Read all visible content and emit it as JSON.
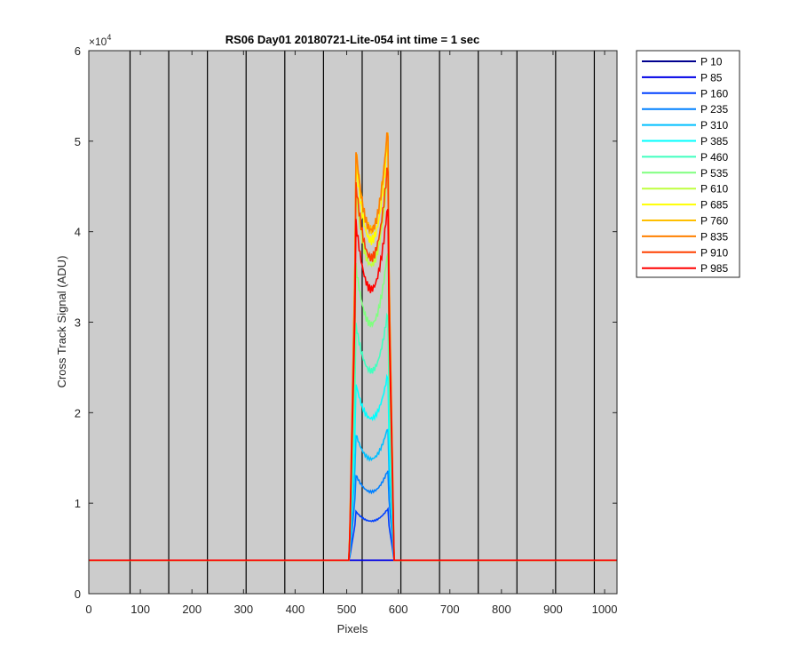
{
  "chart_data": {
    "type": "line",
    "title": "RS06 Day01 20180721-Lite-054 int time = 1 sec",
    "xlabel": "Pixels",
    "ylabel": "Cross Track Signal (ADU)",
    "y_exponent_label": "×10",
    "y_exponent_power": "4",
    "xlim": [
      0,
      1024
    ],
    "ylim": [
      0,
      60000
    ],
    "x_ticks": [
      0,
      100,
      200,
      300,
      400,
      500,
      600,
      700,
      800,
      900,
      1000
    ],
    "x_tick_labels": [
      "0",
      "100",
      "200",
      "300",
      "400",
      "500",
      "600",
      "700",
      "800",
      "900",
      "1000"
    ],
    "y_ticks": [
      0,
      10000,
      20000,
      30000,
      40000,
      50000,
      60000
    ],
    "y_tick_labels": [
      "0",
      "1",
      "2",
      "3",
      "4",
      "5",
      "6"
    ],
    "vertical_lines_x": [
      80,
      155,
      230,
      305,
      380,
      455,
      530,
      605,
      680,
      755,
      830,
      905,
      980
    ],
    "background": "#cccccc",
    "grid": false,
    "legend_position": "outside-top-right",
    "baseline": 3700,
    "x_range_rise": [
      515,
      580
    ],
    "series": [
      {
        "name": "P 10",
        "color": "#00008f",
        "peak": 3700
      },
      {
        "name": "P 85",
        "color": "#0000e6",
        "peak": 3700
      },
      {
        "name": "P 160",
        "color": "#0040ff",
        "peak": 9300
      },
      {
        "name": "P 235",
        "color": "#0080ff",
        "peak": 13500
      },
      {
        "name": "P 310",
        "color": "#00bfff",
        "peak": 18200
      },
      {
        "name": "P 385",
        "color": "#00ffff",
        "peak": 24000
      },
      {
        "name": "P 460",
        "color": "#40ffbf",
        "peak": 30800
      },
      {
        "name": "P 535",
        "color": "#80ff80",
        "peak": 37500
      },
      {
        "name": "P 610",
        "color": "#bfff40",
        "peak": 46000
      },
      {
        "name": "P 685",
        "color": "#ffff00",
        "peak": 49500
      },
      {
        "name": "P 760",
        "color": "#ffbf00",
        "peak": 51000
      },
      {
        "name": "P 835",
        "color": "#ff8000",
        "peak": 51000
      },
      {
        "name": "P 910",
        "color": "#ff4000",
        "peak": 47000
      },
      {
        "name": "P 985",
        "color": "#ff0000",
        "peak": 42500
      }
    ]
  }
}
